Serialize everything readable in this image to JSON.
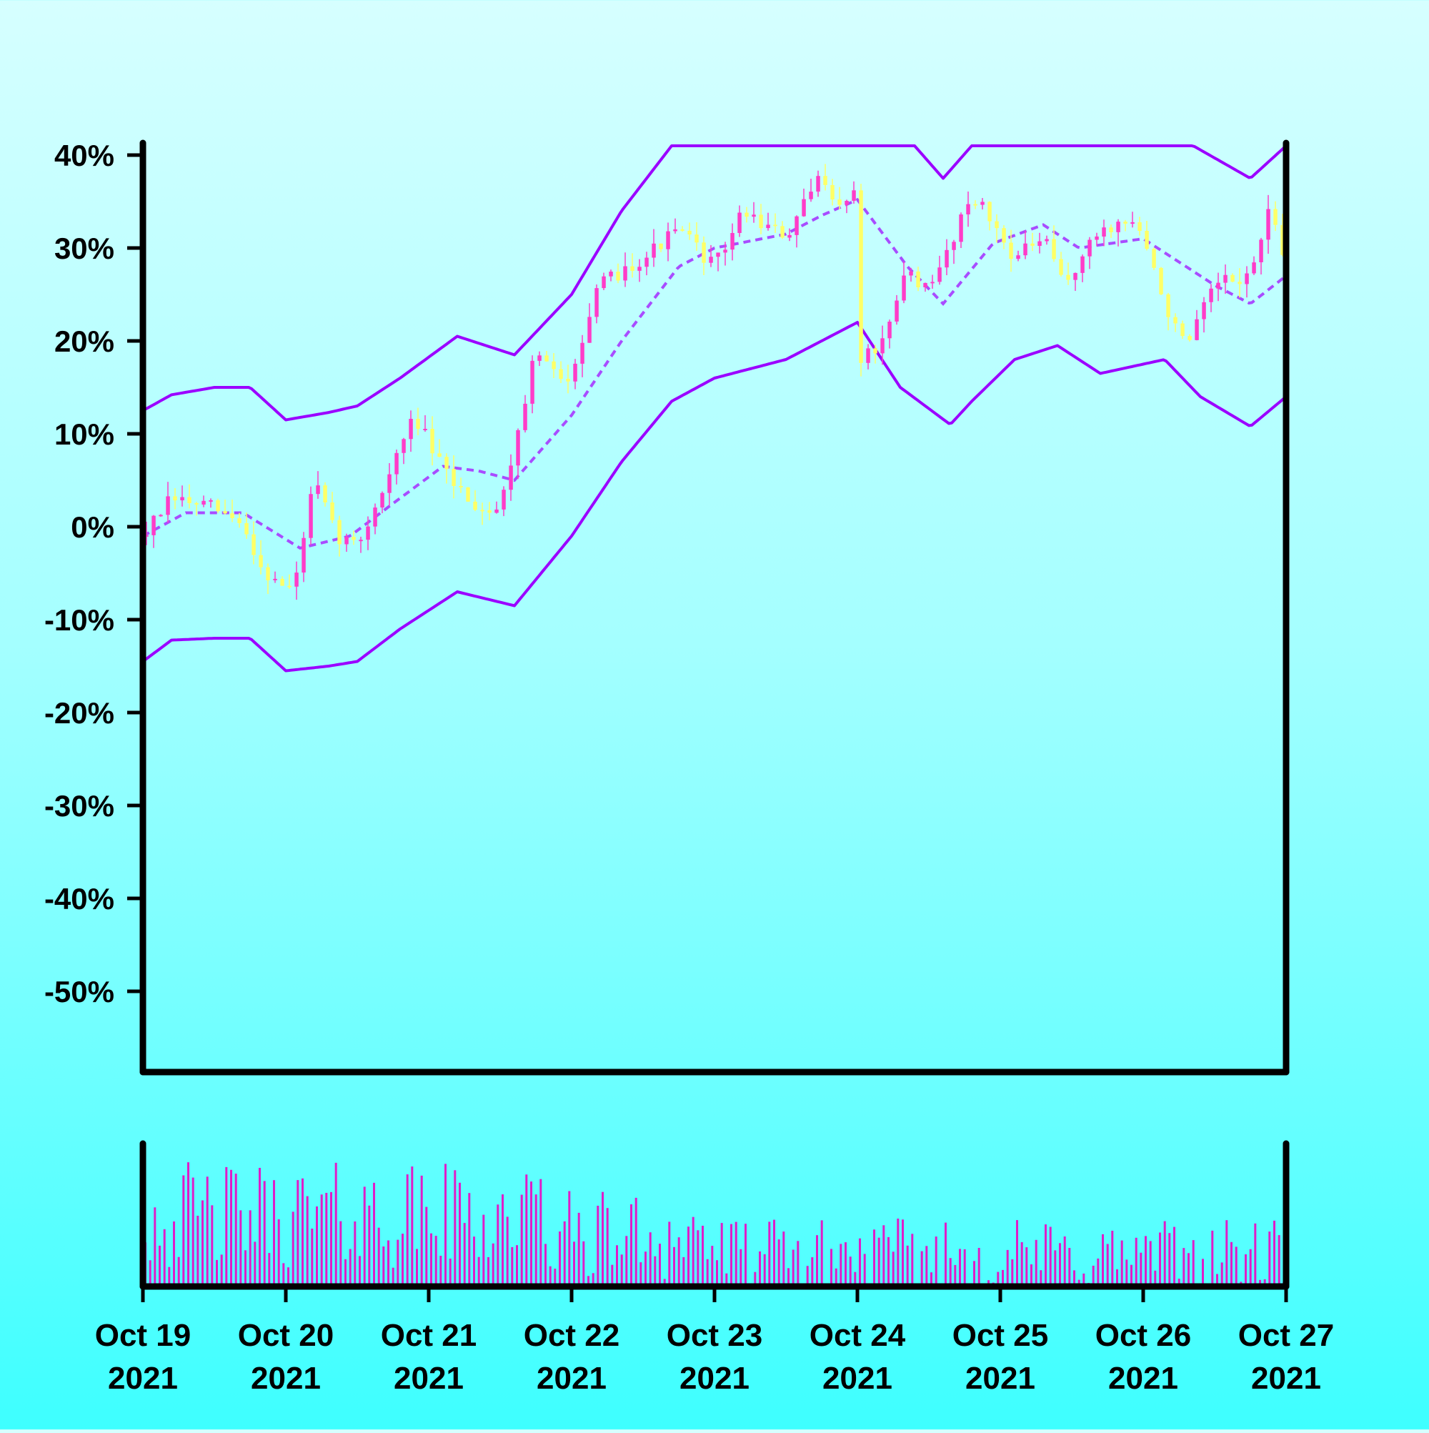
{
  "chart_data": {
    "type": "candlestick",
    "title": "",
    "xlabel": "",
    "ylabel": "",
    "ylim": [
      -60,
      41
    ],
    "yticks": [
      40,
      30,
      20,
      10,
      0,
      -10,
      -20,
      -30,
      -40,
      -50
    ],
    "ytick_labels": [
      "40%",
      "30%",
      "20%",
      "10%",
      "0%",
      "-10%",
      "-20%",
      "-30%",
      "-40%",
      "-50%"
    ],
    "xlim": [
      "2021-10-19",
      "2021-10-27"
    ],
    "xticks": [
      {
        "line1": "Oct 19",
        "line2": "2021"
      },
      {
        "line1": "Oct 20",
        "line2": "2021"
      },
      {
        "line1": "Oct 21",
        "line2": "2021"
      },
      {
        "line1": "Oct 22",
        "line2": "2021"
      },
      {
        "line1": "Oct 23",
        "line2": "2021"
      },
      {
        "line1": "Oct 24",
        "line2": "2021"
      },
      {
        "line1": "Oct 25",
        "line2": "2021"
      },
      {
        "line1": "Oct 26",
        "line2": "2021"
      },
      {
        "line1": "Oct 27",
        "line2": "2021"
      }
    ],
    "grid": false,
    "colors": {
      "up": "#ff3cc8",
      "down": "#ffff66",
      "bands": "#9b00ff",
      "volume": "#e01cc8"
    },
    "close_anchors": [
      {
        "day": 0.0,
        "close": -1
      },
      {
        "day": 0.2,
        "close": 3
      },
      {
        "day": 0.5,
        "close": 2
      },
      {
        "day": 0.7,
        "close": 0
      },
      {
        "day": 0.85,
        "close": -5
      },
      {
        "day": 1.05,
        "close": -7
      },
      {
        "day": 1.2,
        "close": 5
      },
      {
        "day": 1.35,
        "close": -1
      },
      {
        "day": 1.5,
        "close": -2
      },
      {
        "day": 1.65,
        "close": 3
      },
      {
        "day": 1.9,
        "close": 12
      },
      {
        "day": 2.1,
        "close": 6
      },
      {
        "day": 2.35,
        "close": 2
      },
      {
        "day": 2.5,
        "close": 2
      },
      {
        "day": 2.75,
        "close": 19
      },
      {
        "day": 2.95,
        "close": 15
      },
      {
        "day": 3.2,
        "close": 26
      },
      {
        "day": 3.5,
        "close": 29
      },
      {
        "day": 3.75,
        "close": 32
      },
      {
        "day": 4.0,
        "close": 28
      },
      {
        "day": 4.2,
        "close": 34
      },
      {
        "day": 4.5,
        "close": 31
      },
      {
        "day": 4.75,
        "close": 38
      },
      {
        "day": 4.9,
        "close": 34
      },
      {
        "day": 5.0,
        "close": 37
      },
      {
        "day": 5.02,
        "close": 18
      },
      {
        "day": 5.2,
        "close": 20
      },
      {
        "day": 5.35,
        "close": 28
      },
      {
        "day": 5.5,
        "close": 25
      },
      {
        "day": 5.8,
        "close": 36
      },
      {
        "day": 6.1,
        "close": 29
      },
      {
        "day": 6.3,
        "close": 31
      },
      {
        "day": 6.45,
        "close": 26
      },
      {
        "day": 6.7,
        "close": 32
      },
      {
        "day": 6.95,
        "close": 33
      },
      {
        "day": 7.15,
        "close": 24
      },
      {
        "day": 7.3,
        "close": 19
      },
      {
        "day": 7.5,
        "close": 26
      },
      {
        "day": 7.75,
        "close": 27
      },
      {
        "day": 7.88,
        "close": 34
      },
      {
        "day": 8.0,
        "close": 28
      }
    ],
    "upper_band": [
      {
        "day": 0.0,
        "value": 12.5
      },
      {
        "day": 0.2,
        "value": 14.2
      },
      {
        "day": 0.5,
        "value": 15
      },
      {
        "day": 0.75,
        "value": 15
      },
      {
        "day": 1.0,
        "value": 11.5
      },
      {
        "day": 1.3,
        "value": 12.3
      },
      {
        "day": 1.5,
        "value": 13
      },
      {
        "day": 1.8,
        "value": 16
      },
      {
        "day": 2.2,
        "value": 20.5
      },
      {
        "day": 2.6,
        "value": 18.5
      },
      {
        "day": 3.0,
        "value": 25
      },
      {
        "day": 3.35,
        "value": 34
      },
      {
        "day": 3.7,
        "value": 41
      },
      {
        "day": 4.0,
        "value": 41
      },
      {
        "day": 4.5,
        "value": 41
      },
      {
        "day": 5.4,
        "value": 41
      },
      {
        "day": 5.6,
        "value": 37.5
      },
      {
        "day": 5.8,
        "value": 41
      },
      {
        "day": 6.5,
        "value": 41
      },
      {
        "day": 7.35,
        "value": 41
      },
      {
        "day": 7.75,
        "value": 37.5
      },
      {
        "day": 8.0,
        "value": 41
      }
    ],
    "lower_band": [
      {
        "day": 0.0,
        "value": -14.5
      },
      {
        "day": 0.2,
        "value": -12.2
      },
      {
        "day": 0.5,
        "value": -12
      },
      {
        "day": 0.75,
        "value": -12
      },
      {
        "day": 1.0,
        "value": -15.5
      },
      {
        "day": 1.3,
        "value": -15
      },
      {
        "day": 1.5,
        "value": -14.5
      },
      {
        "day": 1.8,
        "value": -11
      },
      {
        "day": 2.2,
        "value": -7
      },
      {
        "day": 2.6,
        "value": -8.5
      },
      {
        "day": 3.0,
        "value": -1
      },
      {
        "day": 3.35,
        "value": 7
      },
      {
        "day": 3.7,
        "value": 13.5
      },
      {
        "day": 4.0,
        "value": 16
      },
      {
        "day": 4.5,
        "value": 18
      },
      {
        "day": 5.0,
        "value": 22
      },
      {
        "day": 5.3,
        "value": 15
      },
      {
        "day": 5.65,
        "value": 11
      },
      {
        "day": 5.8,
        "value": 13.5
      },
      {
        "day": 6.1,
        "value": 18
      },
      {
        "day": 6.4,
        "value": 19.5
      },
      {
        "day": 6.7,
        "value": 16.5
      },
      {
        "day": 7.15,
        "value": 18
      },
      {
        "day": 7.4,
        "value": 14
      },
      {
        "day": 7.75,
        "value": 10.8
      },
      {
        "day": 8.0,
        "value": 14
      }
    ],
    "middle_band": [
      {
        "day": 0.0,
        "value": -1
      },
      {
        "day": 0.3,
        "value": 1.5
      },
      {
        "day": 0.7,
        "value": 1.5
      },
      {
        "day": 1.1,
        "value": -2.3
      },
      {
        "day": 1.45,
        "value": -1
      },
      {
        "day": 1.75,
        "value": 2.5
      },
      {
        "day": 2.1,
        "value": 6.5
      },
      {
        "day": 2.35,
        "value": 6
      },
      {
        "day": 2.6,
        "value": 5
      },
      {
        "day": 3.0,
        "value": 12
      },
      {
        "day": 3.35,
        "value": 20
      },
      {
        "day": 3.75,
        "value": 28
      },
      {
        "day": 4.0,
        "value": 30
      },
      {
        "day": 4.5,
        "value": 31.5
      },
      {
        "day": 4.75,
        "value": 33.5
      },
      {
        "day": 5.0,
        "value": 35.2
      },
      {
        "day": 5.35,
        "value": 28
      },
      {
        "day": 5.6,
        "value": 24
      },
      {
        "day": 5.95,
        "value": 30.5
      },
      {
        "day": 6.3,
        "value": 32.5
      },
      {
        "day": 6.55,
        "value": 30
      },
      {
        "day": 7.0,
        "value": 31
      },
      {
        "day": 7.5,
        "value": 26
      },
      {
        "day": 7.75,
        "value": 24
      },
      {
        "day": 8.0,
        "value": 27
      }
    ]
  }
}
